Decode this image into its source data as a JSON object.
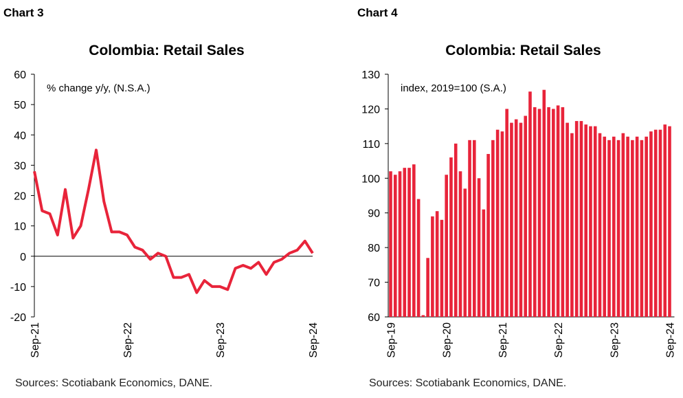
{
  "chart_data": [
    {
      "type": "line",
      "label": "Chart 3",
      "title": "Colombia: Retail Sales",
      "subtitle": "% change y/y, (N.S.A.)",
      "source": "Sources: Scotiabank Economics, DANE.",
      "color": "#e8243a",
      "categories": [
        "Sep-21",
        null,
        null,
        null,
        null,
        null,
        null,
        null,
        null,
        null,
        null,
        null,
        "Sep-22",
        null,
        null,
        null,
        null,
        null,
        null,
        null,
        null,
        null,
        null,
        null,
        "Sep-23",
        null,
        null,
        null,
        null,
        null,
        null,
        null,
        null,
        null,
        null,
        null,
        "Sep-24"
      ],
      "values": [
        28,
        15,
        14,
        7,
        22,
        6,
        10,
        22,
        35,
        18,
        8,
        8,
        7,
        3,
        2,
        -1,
        1,
        0,
        -7,
        -7,
        -6,
        -12,
        -8,
        -10,
        -10,
        -11,
        -4,
        -3,
        -4,
        -2,
        -6,
        -2,
        -1,
        1,
        2,
        5,
        1
      ],
      "ylim": [
        -20,
        60
      ],
      "yticks": [
        -20,
        -10,
        0,
        10,
        20,
        30,
        40,
        50,
        60
      ]
    },
    {
      "type": "bar",
      "label": "Chart 4",
      "title": "Colombia: Retail Sales",
      "subtitle": "index, 2019=100 (S.A.)",
      "source": "Sources: Scotiabank Economics, DANE.",
      "color": "#e8243a",
      "categories": [
        "Sep-19",
        null,
        null,
        null,
        null,
        null,
        null,
        null,
        null,
        null,
        null,
        null,
        "Sep-20",
        null,
        null,
        null,
        null,
        null,
        null,
        null,
        null,
        null,
        null,
        null,
        "Sep-21",
        null,
        null,
        null,
        null,
        null,
        null,
        null,
        null,
        null,
        null,
        null,
        "Sep-22",
        null,
        null,
        null,
        null,
        null,
        null,
        null,
        null,
        null,
        null,
        null,
        "Sep-23",
        null,
        null,
        null,
        null,
        null,
        null,
        null,
        null,
        null,
        null,
        null,
        "Sep-24"
      ],
      "values": [
        102,
        101,
        102,
        103,
        103,
        104,
        94,
        60.5,
        77,
        89,
        90.5,
        88,
        101,
        106,
        110,
        102,
        97,
        111,
        111,
        100,
        91,
        107,
        111,
        114,
        113.5,
        120,
        116,
        117,
        116,
        118,
        125,
        120.5,
        120,
        125.5,
        120.5,
        120,
        121,
        120.5,
        116,
        113,
        116.5,
        116.5,
        115.5,
        115,
        115,
        113,
        112,
        111,
        112,
        111,
        113,
        112,
        111,
        112,
        111,
        112,
        113.5,
        114,
        114,
        115.5,
        115
      ],
      "ylim": [
        60,
        130
      ],
      "yticks": [
        60,
        70,
        80,
        90,
        100,
        110,
        120,
        130
      ]
    }
  ]
}
